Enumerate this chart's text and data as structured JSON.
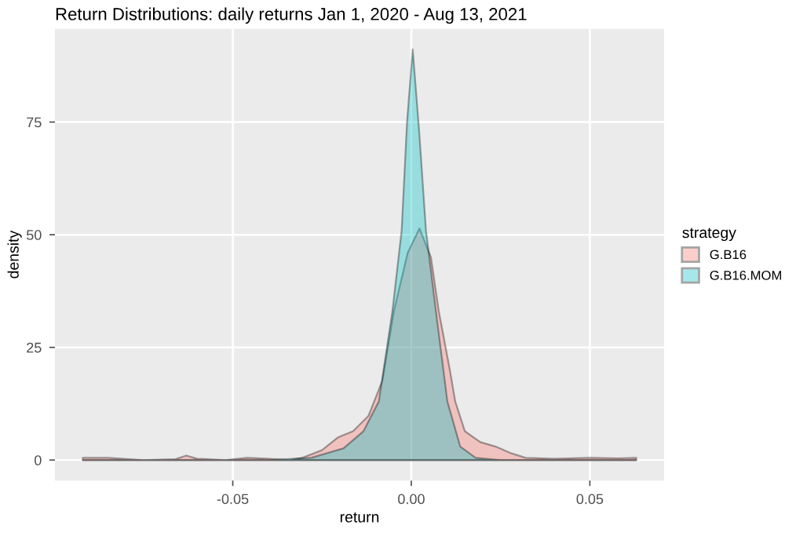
{
  "chart_data": {
    "type": "area",
    "title": "Return Distributions: daily returns Jan 1, 2020 - Aug 13, 2021",
    "xlabel": "return",
    "ylabel": "density",
    "legend_title": "strategy",
    "series": [
      {
        "name": "G.B16",
        "color": "#f8766d",
        "x": [
          -0.092,
          -0.085,
          -0.075,
          -0.066,
          -0.063,
          -0.06,
          -0.052,
          -0.046,
          -0.04,
          -0.034,
          -0.0306,
          -0.025,
          -0.0206,
          -0.0163,
          -0.012,
          -0.0081,
          -0.0049,
          -0.001,
          0.0023,
          0.0055,
          0.0077,
          0.0108,
          0.0123,
          0.015,
          0.0193,
          0.0236,
          0.028,
          0.032,
          0.04,
          0.05,
          0.058,
          0.063
        ],
        "values": [
          0.5,
          0.5,
          0,
          0.2,
          1,
          0.3,
          0,
          0.5,
          0.3,
          0,
          0.5,
          2.2,
          5,
          6.4,
          9.8,
          17.6,
          33,
          46,
          51.4,
          45,
          33,
          20,
          13,
          6.4,
          4,
          3,
          1.5,
          0.5,
          0.3,
          0.5,
          0.4,
          0.5
        ]
      },
      {
        "name": "G.B16.MOM",
        "color": "#00bfc4",
        "x": [
          -0.092,
          -0.08,
          -0.07,
          -0.06,
          -0.05,
          -0.04,
          -0.028,
          -0.019,
          -0.0134,
          -0.0091,
          -0.0053,
          -0.0027,
          -0.0012,
          0.0004,
          0.0022,
          0.0041,
          0.0069,
          0.0101,
          0.0137,
          0.018,
          0.025,
          0.035,
          0.045,
          0.055,
          0.063
        ],
        "values": [
          0,
          0,
          0,
          0,
          0,
          0,
          0.5,
          2.6,
          6.4,
          13,
          33,
          51,
          75,
          91.1,
          73,
          51,
          33,
          13,
          3,
          0.5,
          0,
          0,
          0,
          0,
          0
        ]
      }
    ],
    "xlim": [
      -0.0998,
      0.0708
    ],
    "ylim": [
      -4.55,
      95.7
    ],
    "xticks": [
      {
        "value": -0.05,
        "label": "-0.05"
      },
      {
        "value": 0,
        "label": "0.00"
      },
      {
        "value": 0.05,
        "label": "0.05"
      }
    ],
    "yticks": [
      0,
      25,
      50,
      75
    ],
    "grid": true,
    "legend": "right"
  }
}
